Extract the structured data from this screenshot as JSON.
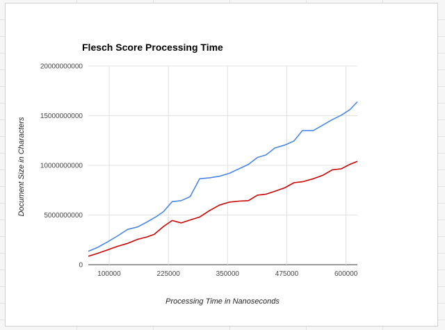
{
  "chart_data": {
    "type": "line",
    "title": "Flesch Score Processing Time",
    "xlabel": "Processing Time in Nanoseconds",
    "ylabel": "Document Size in Characters",
    "xlim": [
      56000,
      624000
    ],
    "ylim": [
      0,
      20000000000
    ],
    "x_ticks": [
      100000,
      225000,
      350000,
      475000,
      600000
    ],
    "x_tick_labels": [
      "100000",
      "225000",
      "350000",
      "475000",
      "600000"
    ],
    "y_ticks": [
      0,
      5000000000,
      10000000000,
      15000000000,
      20000000000
    ],
    "y_tick_labels": [
      "0",
      "5000000000",
      "10000000000",
      "15000000000",
      "20000000000"
    ],
    "grid": true,
    "series": [
      {
        "color": "#4a86e8",
        "points": [
          [
            56000,
            1350000000
          ],
          [
            76000,
            1750000000
          ],
          [
            97000,
            2300000000
          ],
          [
            118000,
            2900000000
          ],
          [
            139000,
            3550000000
          ],
          [
            160000,
            3800000000
          ],
          [
            180000,
            4300000000
          ],
          [
            200000,
            4850000000
          ],
          [
            215000,
            5350000000
          ],
          [
            233000,
            6350000000
          ],
          [
            252000,
            6450000000
          ],
          [
            271000,
            6850000000
          ],
          [
            291000,
            8650000000
          ],
          [
            312000,
            8750000000
          ],
          [
            333000,
            8900000000
          ],
          [
            354000,
            9200000000
          ],
          [
            374000,
            9650000000
          ],
          [
            394000,
            10100000000
          ],
          [
            413000,
            10800000000
          ],
          [
            431000,
            11050000000
          ],
          [
            450000,
            11750000000
          ],
          [
            471000,
            12050000000
          ],
          [
            490000,
            12450000000
          ],
          [
            508000,
            13500000000
          ],
          [
            531000,
            13500000000
          ],
          [
            551000,
            14050000000
          ],
          [
            571000,
            14600000000
          ],
          [
            590000,
            15050000000
          ],
          [
            608000,
            15600000000
          ],
          [
            624000,
            16400000000
          ]
        ]
      },
      {
        "color": "#cc0000",
        "points": [
          [
            56000,
            850000000
          ],
          [
            76000,
            1150000000
          ],
          [
            97000,
            1500000000
          ],
          [
            118000,
            1850000000
          ],
          [
            139000,
            2150000000
          ],
          [
            160000,
            2550000000
          ],
          [
            180000,
            2800000000
          ],
          [
            195000,
            3050000000
          ],
          [
            215000,
            3850000000
          ],
          [
            233000,
            4450000000
          ],
          [
            252000,
            4200000000
          ],
          [
            271000,
            4500000000
          ],
          [
            291000,
            4800000000
          ],
          [
            312000,
            5450000000
          ],
          [
            333000,
            6000000000
          ],
          [
            354000,
            6300000000
          ],
          [
            374000,
            6400000000
          ],
          [
            394000,
            6450000000
          ],
          [
            413000,
            7000000000
          ],
          [
            431000,
            7100000000
          ],
          [
            450000,
            7400000000
          ],
          [
            471000,
            7750000000
          ],
          [
            490000,
            8250000000
          ],
          [
            508000,
            8350000000
          ],
          [
            531000,
            8650000000
          ],
          [
            551000,
            9000000000
          ],
          [
            571000,
            9550000000
          ],
          [
            590000,
            9650000000
          ],
          [
            608000,
            10100000000
          ],
          [
            624000,
            10400000000
          ]
        ]
      }
    ]
  }
}
